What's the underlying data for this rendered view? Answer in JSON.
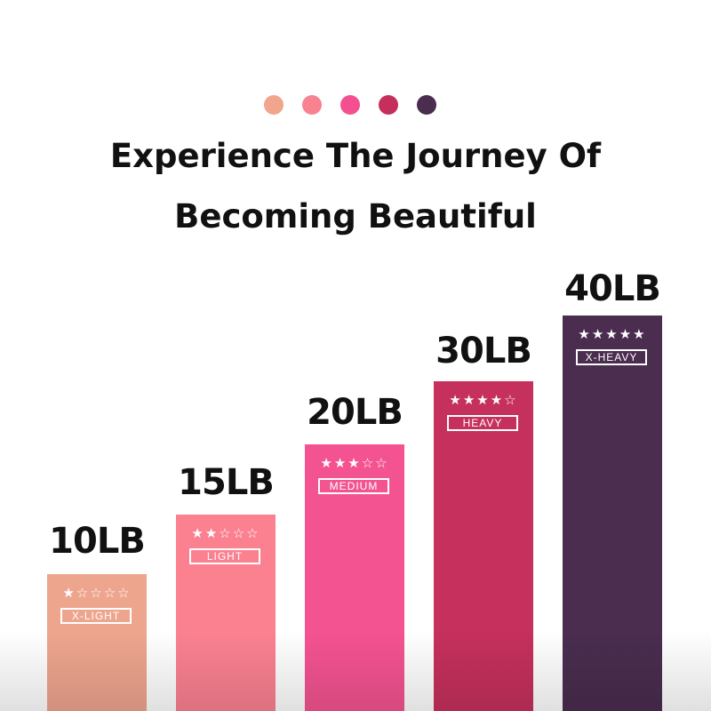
{
  "header": {
    "line1": "Experience The Journey Of",
    "line2": "Becoming Beautiful"
  },
  "dots": [
    "#f0a58c",
    "#f8828f",
    "#f4508f",
    "#c42f5c",
    "#4a2d4f"
  ],
  "bands": [
    {
      "weight": "10LB",
      "level": "X-LIGHT",
      "stars": "★☆☆☆☆",
      "rating": 1,
      "color": "#eea58e"
    },
    {
      "weight": "15LB",
      "level": "LIGHT",
      "stars": "★★☆☆☆",
      "rating": 2,
      "color": "#fb8191"
    },
    {
      "weight": "20LB",
      "level": "MEDIUM",
      "stars": "★★★☆☆",
      "rating": 3,
      "color": "#f45391"
    },
    {
      "weight": "30LB",
      "level": "HEAVY",
      "stars": "★★★★☆",
      "rating": 4,
      "color": "#c5305c"
    },
    {
      "weight": "40LB",
      "level": "X-HEAVY",
      "stars": "★★★★★",
      "rating": 5,
      "color": "#4a2d4f"
    }
  ]
}
